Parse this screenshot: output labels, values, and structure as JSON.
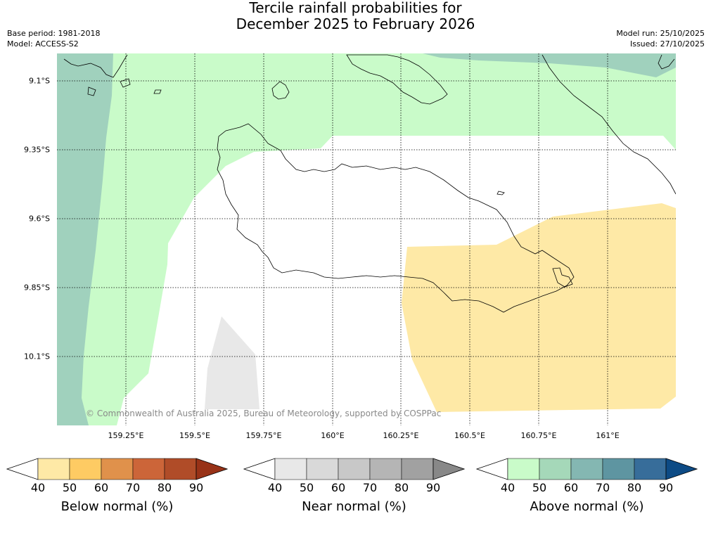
{
  "title": {
    "line1": "Tercile rainfall probabilities for",
    "line2": "December 2025 to February 2026"
  },
  "meta": {
    "base_period": "Base period: 1981-2018",
    "model": "Model: ACCESS-S2",
    "model_run": "Model run: 25/10/2025",
    "issued": "Issued: 27/10/2025"
  },
  "map": {
    "lat_labels": [
      "9.1°S",
      "9.35°S",
      "9.6°S",
      "9.85°S",
      "10.1°S"
    ],
    "lon_labels": [
      "159.25°E",
      "159.5°E",
      "159.75°E",
      "160°E",
      "160.25°E",
      "160.5°E",
      "160.75°E",
      "161°E"
    ],
    "credit": "© Commonwealth of Australia 2025, Bureau of Meteorology, supported by COSPPac"
  },
  "legends": [
    {
      "title": "Below normal (%)",
      "ticks": [
        "40",
        "50",
        "60",
        "70",
        "80",
        "90"
      ],
      "colors": [
        "#fee9a6",
        "#fecb63",
        "#e0914b",
        "#cc6539",
        "#b04c28",
        "#983217"
      ]
    },
    {
      "title": "Near normal (%)",
      "ticks": [
        "40",
        "50",
        "60",
        "70",
        "80",
        "90"
      ],
      "colors": [
        "#e8e8e8",
        "#d9d9d9",
        "#c8c8c8",
        "#b5b5b5",
        "#a1a1a1",
        "#888888"
      ]
    },
    {
      "title": "Above normal (%)",
      "ticks": [
        "40",
        "50",
        "60",
        "70",
        "80",
        "90"
      ],
      "colors": [
        "#c9fbc9",
        "#a5d8b9",
        "#84b7b2",
        "#5e95a1",
        "#376d9a",
        "#0d4b85"
      ]
    }
  ]
}
